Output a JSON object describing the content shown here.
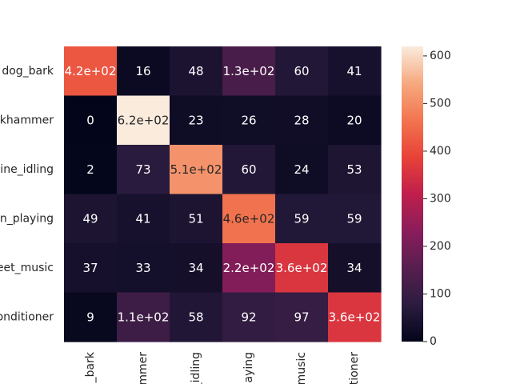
{
  "chart_data": {
    "type": "heatmap",
    "title": "",
    "xlabel": "",
    "ylabel": "",
    "y_tick_labels": [
      "dog_bark",
      "ckhammer",
      "gine_idling",
      "en_playing",
      "eet_music",
      "onditioner"
    ],
    "x_tick_labels": [
      "_bark",
      "mmer",
      "_idling",
      "aying",
      "music",
      "tioner"
    ],
    "values": [
      [
        420,
        16,
        48,
        130,
        60,
        41
      ],
      [
        0,
        620,
        23,
        26,
        28,
        20
      ],
      [
        2,
        73,
        510,
        60,
        24,
        53
      ],
      [
        49,
        41,
        51,
        460,
        59,
        59
      ],
      [
        37,
        33,
        34,
        220,
        360,
        34
      ],
      [
        9,
        110,
        58,
        92,
        97,
        360
      ]
    ],
    "annotations": [
      [
        "4.2e+02",
        "16",
        "48",
        "1.3e+02",
        "60",
        "41"
      ],
      [
        "0",
        "6.2e+02",
        "23",
        "26",
        "28",
        "20"
      ],
      [
        "2",
        "73",
        "5.1e+02",
        "60",
        "24",
        "53"
      ],
      [
        "49",
        "41",
        "51",
        "4.6e+02",
        "59",
        "59"
      ],
      [
        "37",
        "33",
        "34",
        "2.2e+02",
        "3.6e+02",
        "34"
      ],
      [
        "9",
        "1.1e+02",
        "58",
        "92",
        "97",
        "3.6e+02"
      ]
    ],
    "colorbar": {
      "min": 0,
      "max": 620,
      "ticks": [
        0,
        100,
        200,
        300,
        400,
        500,
        600
      ],
      "colormap": "rocket"
    }
  }
}
